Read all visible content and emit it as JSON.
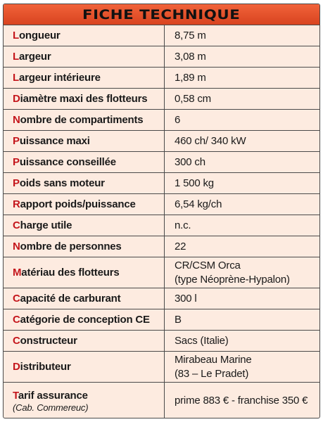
{
  "header": {
    "title": "FICHE TECHNIQUE"
  },
  "rows": [
    {
      "first": "L",
      "rest": "ongueur",
      "value": "8,75 m"
    },
    {
      "first": "L",
      "rest": "argeur",
      "value": "3,08 m"
    },
    {
      "first": "L",
      "rest": "argeur intérieure",
      "value": "1,89 m"
    },
    {
      "first": "D",
      "rest": "iamètre maxi des flotteurs",
      "value": "0,58 cm"
    },
    {
      "first": "N",
      "rest": "ombre de compartiments",
      "value": "6"
    },
    {
      "first": "P",
      "rest": "uissance maxi",
      "value": "460 ch/ 340 kW"
    },
    {
      "first": "P",
      "rest": "uissance conseillée",
      "value": "300 ch"
    },
    {
      "first": "P",
      "rest": "oids sans moteur",
      "value": "1 500 kg"
    },
    {
      "first": "R",
      "rest": "apport poids/puissance",
      "value": "6,54 kg/ch"
    },
    {
      "first": "C",
      "rest": "harge utile",
      "value": "n.c."
    },
    {
      "first": "N",
      "rest": "ombre de personnes",
      "value": "22"
    },
    {
      "first": "M",
      "rest": "atériau des flotteurs",
      "value_line1": "CR/CSM Orca",
      "value_line2": "(type Néoprène-Hypalon)"
    },
    {
      "first": "C",
      "rest": "apacité de carburant",
      "value": "300 l"
    },
    {
      "first": "C",
      "rest": "atégorie de conception CE",
      "value": "B"
    },
    {
      "first": "C",
      "rest": "onstructeur",
      "value": "Sacs (Italie)"
    },
    {
      "first": "D",
      "rest": "istributeur",
      "value_line1": "Mirabeau Marine",
      "value_line2": "(83 – Le Pradet)"
    },
    {
      "first": "T",
      "rest": "arif assurance",
      "sub": "(Cab. Commereuc)",
      "value": "prime 883 € - franchise 350 €"
    }
  ]
}
